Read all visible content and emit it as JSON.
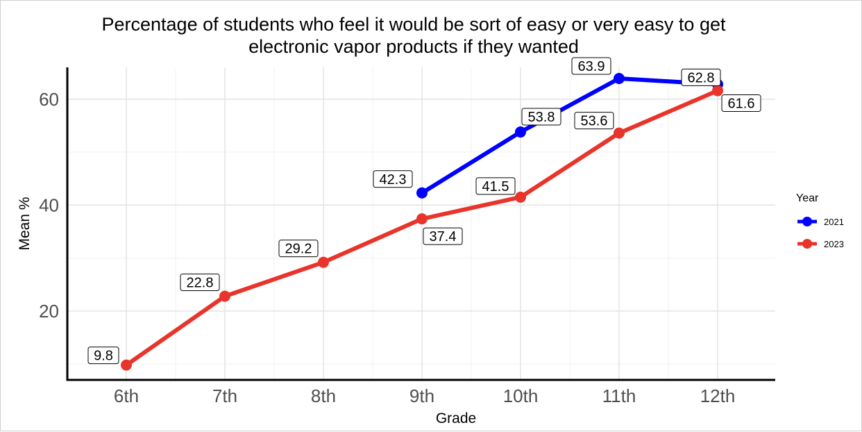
{
  "chart_data": {
    "type": "line",
    "title": "Percentage of students who feel it would be sort of easy or very easy to get\nelectronic vapor products if they wanted",
    "xlabel": "Grade",
    "ylabel": "Mean %",
    "categories": [
      "6th",
      "7th",
      "8th",
      "9th",
      "10th",
      "11th",
      "12th"
    ],
    "ylim": [
      7,
      66
    ],
    "yticks": [
      20,
      40,
      60
    ],
    "grid": true,
    "legend": {
      "title": "Year",
      "position": "right"
    },
    "series": [
      {
        "name": "2021",
        "color": "#0000ff",
        "values": [
          null,
          null,
          null,
          42.3,
          53.8,
          63.9,
          62.8
        ],
        "labels": [
          "",
          "",
          "",
          "42.3",
          "53.8",
          "63.9",
          "62.8"
        ]
      },
      {
        "name": "2023",
        "color": "#e8342a",
        "values": [
          9.8,
          22.8,
          29.2,
          37.4,
          41.5,
          53.6,
          61.6
        ],
        "labels": [
          "9.8",
          "22.8",
          "29.2",
          "37.4",
          "41.5",
          "53.6",
          "61.6"
        ]
      }
    ]
  }
}
